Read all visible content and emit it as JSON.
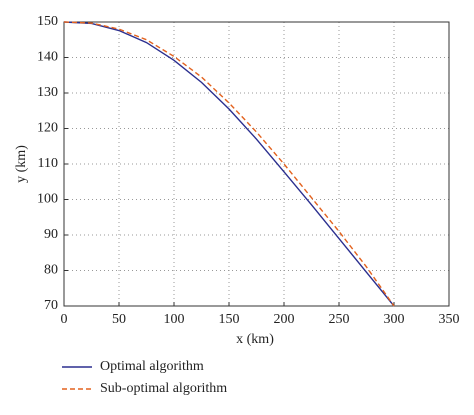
{
  "chart_data": {
    "type": "line",
    "x_label": "x (km)",
    "y_label": "y (km)",
    "x": [
      0,
      25,
      50,
      75,
      100,
      125,
      150,
      175,
      200,
      225,
      250,
      275,
      300
    ],
    "series": [
      {
        "name": "Optimal algorithm",
        "color": "#2b2f8f",
        "dash": false,
        "values": [
          150,
          149.6,
          147.6,
          144.2,
          139.2,
          133,
          125.5,
          117,
          107.8,
          98.5,
          89,
          79.5,
          70
        ]
      },
      {
        "name": "Sub-optimal algorithm",
        "color": "#e3621e",
        "dash": true,
        "values": [
          150,
          149.7,
          148,
          145,
          140.3,
          134.5,
          127.2,
          119,
          110,
          100.5,
          91,
          81,
          70
        ]
      }
    ],
    "xlim": [
      0,
      350
    ],
    "xticks": [
      0,
      50,
      100,
      150,
      200,
      250,
      300,
      350
    ],
    "ylim": [
      70,
      150
    ],
    "yticks": [
      70,
      80,
      90,
      100,
      110,
      120,
      130,
      140,
      150
    ],
    "grid": true,
    "legend": "below"
  }
}
